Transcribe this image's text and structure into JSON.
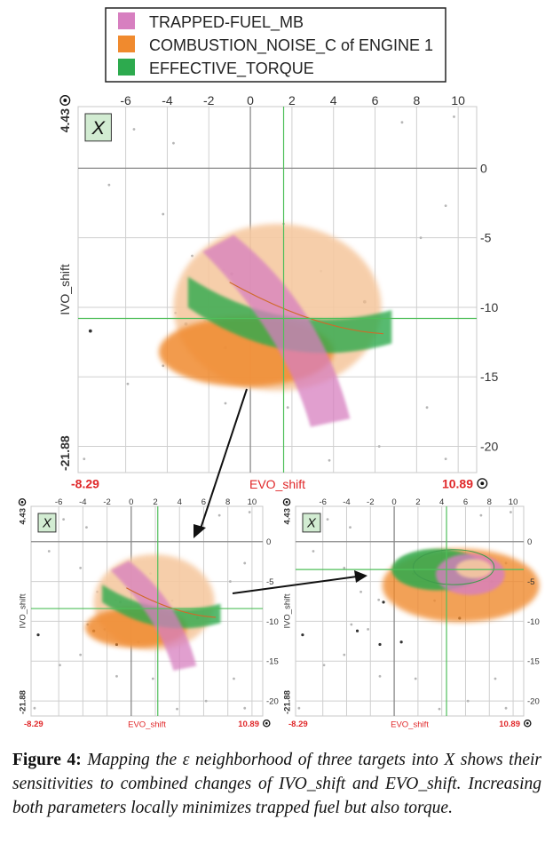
{
  "legend": {
    "items": [
      {
        "label": "TRAPPED-FUEL_MB",
        "color": "#d77fc0"
      },
      {
        "label": "COMBUSTION_NOISE_C of ENGINE 1",
        "color": "#f08a2e"
      },
      {
        "label": "EFFECTIVE_TORQUE",
        "color": "#2daa4e"
      }
    ]
  },
  "colors": {
    "pink": "#d77fc0",
    "orange": "#f08a2e",
    "green": "#2daa4e",
    "peach": "#f6c9a1",
    "crosshair": "#4fbf5a",
    "range": "#e0282a"
  },
  "panel": {
    "x_axis_label": "EVO_shift",
    "y_axis_label": "IVO_shift",
    "x_min_label": "-8.29",
    "x_max_label": "10.89",
    "y_max_label": "4.43",
    "y_min_label": "-21.88",
    "x_ticks": [
      -6,
      -4,
      -2,
      0,
      2,
      4,
      6,
      8,
      10
    ],
    "y_ticks": [
      0,
      -5,
      -10,
      -15,
      -20
    ],
    "badge": "X"
  },
  "targets": [
    {
      "crosshair": [
        1.6,
        -10.8
      ]
    },
    {
      "crosshair": [
        2.2,
        -8.4
      ]
    },
    {
      "crosshair": [
        4.4,
        -3.5
      ]
    }
  ],
  "caption": {
    "label": "Figure 4:",
    "text": "Mapping the ε neighborhood of three targets into X shows their sensitivities to combined changes of IVO_shift and EVO_shift. Increasing both parameters locally minimizes trapped fuel but also torque."
  }
}
